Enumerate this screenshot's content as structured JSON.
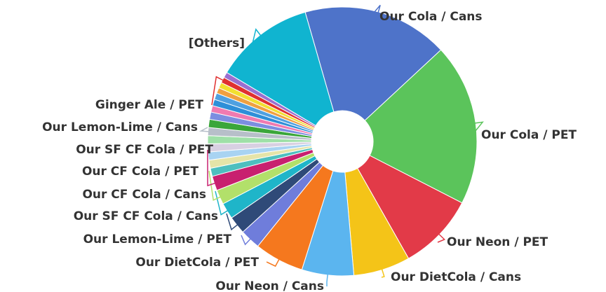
{
  "chart_data": {
    "type": "pie",
    "donut": true,
    "start_angle_deg": -16,
    "slices": [
      {
        "label": "Our Cola / Cans",
        "value": 18.0,
        "color": "#4e73c9"
      },
      {
        "label": "Our Cola / PET",
        "value": 20.0,
        "color": "#5bc45b"
      },
      {
        "label": "Our Neon / PET",
        "value": 9.5,
        "color": "#e23a48"
      },
      {
        "label": "Our DietCola / Cans",
        "value": 7.0,
        "color": "#f4c418"
      },
      {
        "label": "Our Neon / Cans",
        "value": 6.4,
        "color": "#5bb5ef"
      },
      {
        "label": "Our DietCola / PET",
        "value": 6.1,
        "color": "#f5781e"
      },
      {
        "label": "Our Lemon-Lime / PET",
        "value": 2.5,
        "color": "#6f7ddb"
      },
      {
        "label": "Our SF CF Cola / Cans",
        "value": 2.2,
        "color": "#2f4a78"
      },
      {
        "label": "Our CF Cola / Cans",
        "value": 2.0,
        "color": "#1fb5c9"
      },
      {
        "label": "Our CF Cola / PET",
        "value": 1.8,
        "color": "#b2e06a"
      },
      {
        "label": "Our SF CF Cola / PET",
        "value": 1.8,
        "color": "#c8206f"
      },
      {
        "label": "",
        "value": 1.0,
        "color": "#4dbfbf"
      },
      {
        "label": "",
        "value": 1.0,
        "color": "#e5e4a8"
      },
      {
        "label": "",
        "value": 1.0,
        "color": "#a8d3f2"
      },
      {
        "label": "",
        "value": 1.0,
        "color": "#d8d0e2"
      },
      {
        "label": "",
        "value": 1.0,
        "color": "#9fe0a8"
      },
      {
        "label": "Our Lemon-Lime / Cans",
        "value": 1.0,
        "color": "#b7bfc9"
      },
      {
        "label": "",
        "value": 1.0,
        "color": "#3aa63a"
      },
      {
        "label": "",
        "value": 0.9,
        "color": "#7c8ee0"
      },
      {
        "label": "",
        "value": 0.8,
        "color": "#f07ab0"
      },
      {
        "label": "",
        "value": 0.8,
        "color": "#2e8fd8"
      },
      {
        "label": "",
        "value": 0.8,
        "color": "#4fa0e0"
      },
      {
        "label": "",
        "value": 0.7,
        "color": "#f0a040"
      },
      {
        "label": "",
        "value": 0.7,
        "color": "#f2df30"
      },
      {
        "label": "Ginger Ale / PET",
        "value": 0.7,
        "color": "#e03030"
      },
      {
        "label": "",
        "value": 0.7,
        "color": "#9a6fd0"
      },
      {
        "label": "[Others]",
        "value": 12.3,
        "color": "#10b4d0"
      }
    ]
  }
}
